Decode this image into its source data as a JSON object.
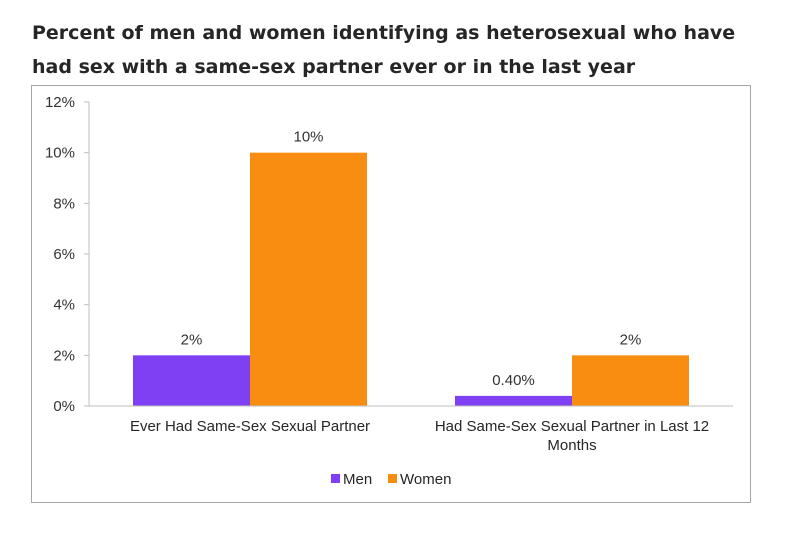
{
  "chart_data": {
    "type": "bar",
    "title": "Percent of men and women identifying as heterosexual who have had sex with a same-sex partner ever or in the last year",
    "categories": [
      "Ever Had Same-Sex Sexual Partner",
      "Had Same-Sex Sexual Partner in Last 12 Months"
    ],
    "series": [
      {
        "name": "Men",
        "values": [
          2,
          0.4
        ],
        "labels": [
          "2%",
          "0.40%"
        ],
        "color": "#7F3FF2"
      },
      {
        "name": "Women",
        "values": [
          10,
          2
        ],
        "labels": [
          "10%",
          "2%"
        ],
        "color": "#F98D11"
      }
    ],
    "ylim": [
      0,
      12
    ],
    "yticks": [
      0,
      2,
      4,
      6,
      8,
      10,
      12
    ],
    "ytick_labels": [
      "0%",
      "2%",
      "4%",
      "6%",
      "8%",
      "10%",
      "12%"
    ],
    "legend": "bottom",
    "grid": false
  }
}
